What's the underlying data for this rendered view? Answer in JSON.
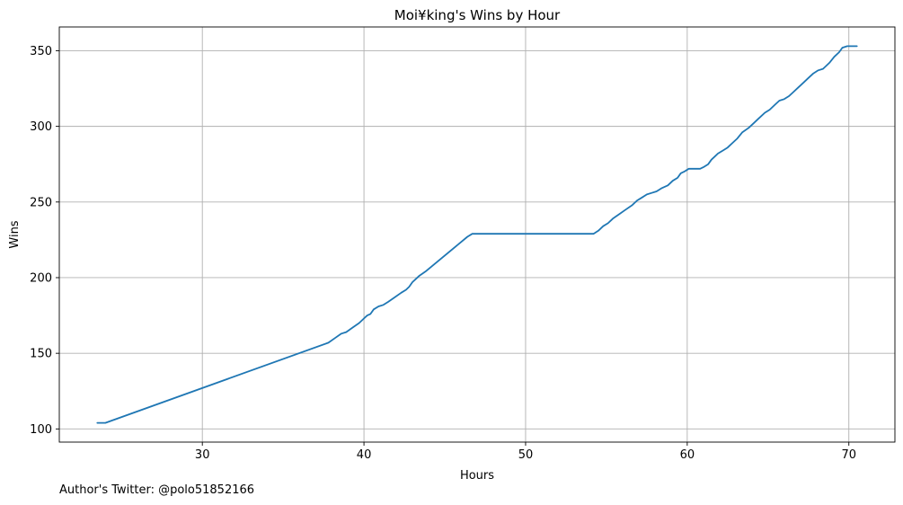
{
  "chart_data": {
    "type": "line",
    "title": "Moi¥king's Wins by Hour",
    "xlabel": "Hours",
    "ylabel": "Wins",
    "xlim": [
      21.15,
      72.85
    ],
    "ylim": [
      91.3,
      365.7
    ],
    "x_ticks": [
      30,
      40,
      50,
      60,
      70
    ],
    "y_ticks": [
      100,
      150,
      200,
      250,
      300,
      350
    ],
    "grid": true,
    "series": [
      {
        "color": "#1f77b4",
        "points": [
          [
            23.5,
            104
          ],
          [
            24.0,
            104
          ],
          [
            37.8,
            157
          ],
          [
            38.2,
            160
          ],
          [
            38.6,
            163
          ],
          [
            38.9,
            164
          ],
          [
            39.3,
            167
          ],
          [
            39.7,
            170
          ],
          [
            40.0,
            173
          ],
          [
            40.2,
            175
          ],
          [
            40.4,
            176
          ],
          [
            40.6,
            179
          ],
          [
            40.9,
            181
          ],
          [
            41.2,
            182
          ],
          [
            41.5,
            184
          ],
          [
            41.9,
            187
          ],
          [
            42.3,
            190
          ],
          [
            42.6,
            192
          ],
          [
            42.8,
            194
          ],
          [
            43.0,
            197
          ],
          [
            43.2,
            199
          ],
          [
            43.4,
            201
          ],
          [
            43.8,
            204
          ],
          [
            46.4,
            227
          ],
          [
            46.7,
            229
          ],
          [
            54.2,
            229
          ],
          [
            54.5,
            231
          ],
          [
            54.8,
            234
          ],
          [
            55.1,
            236
          ],
          [
            55.4,
            239
          ],
          [
            55.8,
            242
          ],
          [
            56.2,
            245
          ],
          [
            56.6,
            248
          ],
          [
            56.9,
            251
          ],
          [
            57.2,
            253
          ],
          [
            57.5,
            255
          ],
          [
            57.8,
            256
          ],
          [
            58.1,
            257
          ],
          [
            58.4,
            259
          ],
          [
            58.8,
            261
          ],
          [
            59.1,
            264
          ],
          [
            59.4,
            266
          ],
          [
            59.6,
            269
          ],
          [
            59.8,
            270
          ],
          [
            60.1,
            272
          ],
          [
            60.8,
            272
          ],
          [
            61.0,
            273
          ],
          [
            61.3,
            275
          ],
          [
            61.5,
            278
          ],
          [
            61.7,
            280
          ],
          [
            61.9,
            282
          ],
          [
            62.2,
            284
          ],
          [
            62.5,
            286
          ],
          [
            62.8,
            289
          ],
          [
            63.1,
            292
          ],
          [
            63.4,
            296
          ],
          [
            63.8,
            299
          ],
          [
            64.1,
            302
          ],
          [
            64.4,
            305
          ],
          [
            64.8,
            309
          ],
          [
            65.1,
            311
          ],
          [
            65.4,
            314
          ],
          [
            65.7,
            317
          ],
          [
            66.0,
            318
          ],
          [
            66.3,
            320
          ],
          [
            66.6,
            323
          ],
          [
            66.9,
            326
          ],
          [
            67.2,
            329
          ],
          [
            67.5,
            332
          ],
          [
            67.8,
            335
          ],
          [
            68.1,
            337
          ],
          [
            68.4,
            338
          ],
          [
            68.8,
            342
          ],
          [
            69.1,
            346
          ],
          [
            69.4,
            349
          ],
          [
            69.6,
            352
          ],
          [
            69.9,
            353
          ],
          [
            70.5,
            353
          ]
        ]
      }
    ],
    "footer": "Author's Twitter: @polo51852166"
  }
}
